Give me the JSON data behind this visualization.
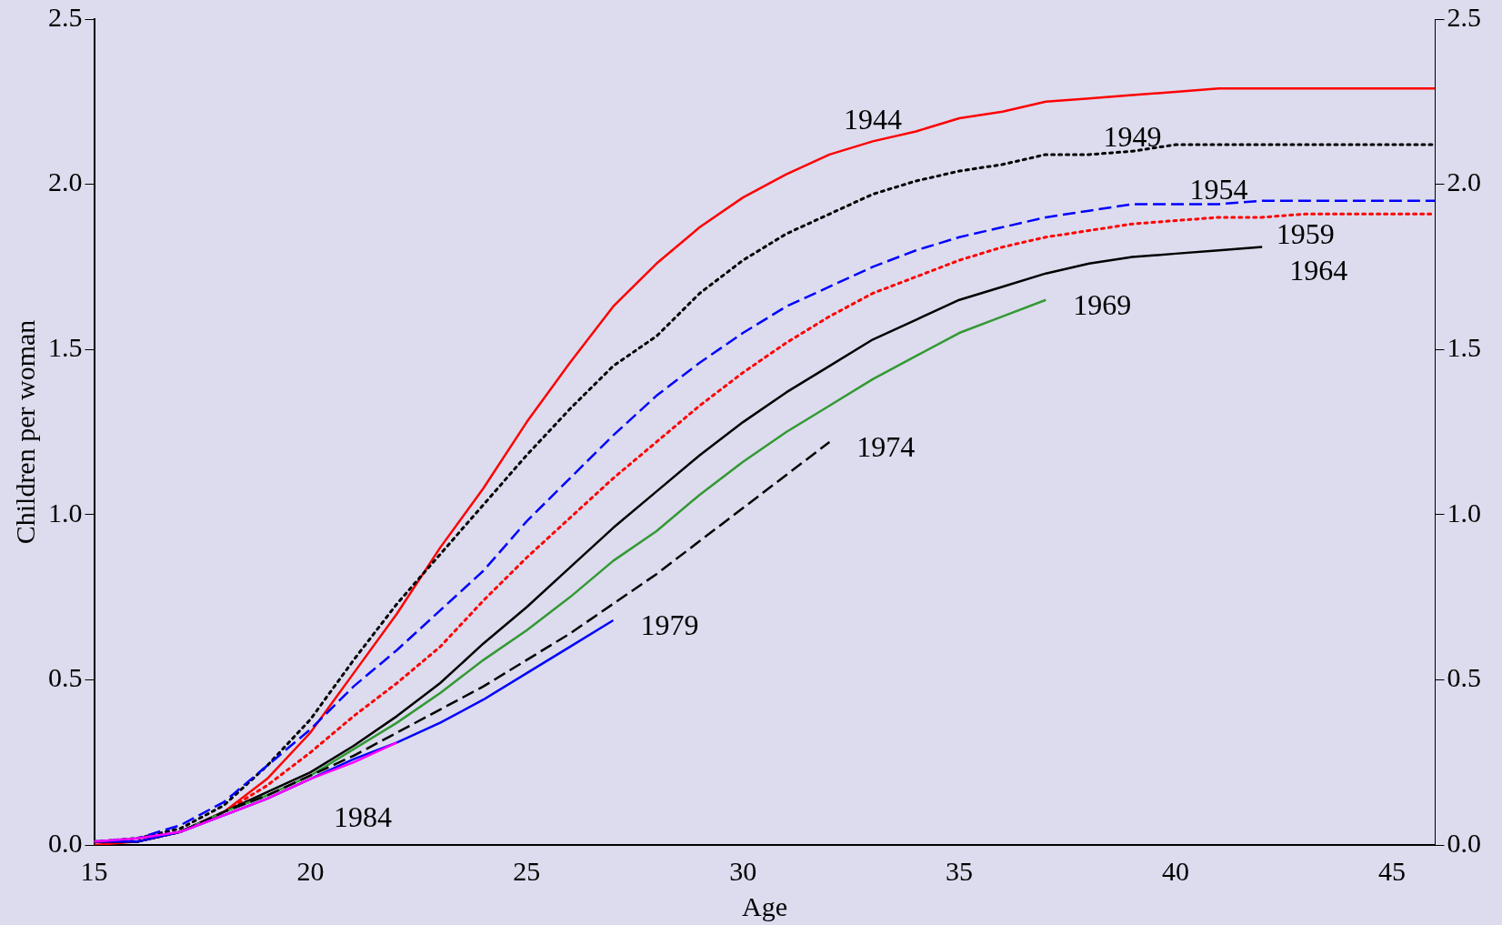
{
  "chart_data": {
    "type": "line",
    "xlabel": "Age",
    "ylabel": "Children per woman",
    "xlim": [
      15,
      46
    ],
    "xticks": [
      15,
      20,
      25,
      30,
      35,
      40,
      45
    ],
    "ylim": [
      0,
      2.5
    ],
    "yticks": [
      {
        "value": 0,
        "label": "0.0"
      },
      {
        "value": 0.5,
        "label": "0.5"
      },
      {
        "value": 1,
        "label": "1.0"
      },
      {
        "value": 1.5,
        "label": "1.5"
      },
      {
        "value": 2,
        "label": "2.0"
      },
      {
        "value": 2.5,
        "label": "2.5"
      }
    ],
    "y2lim": [
      0,
      2.5
    ],
    "y2ticks": [
      {
        "value": 0,
        "label": "0.0"
      },
      {
        "value": 0.5,
        "label": "0.5"
      },
      {
        "value": 1,
        "label": "1.0"
      },
      {
        "value": 1.5,
        "label": "1.5"
      },
      {
        "value": 2,
        "label": "2.0"
      },
      {
        "value": 2.5,
        "label": "2.5"
      }
    ],
    "grid": false,
    "legend": false,
    "marker": "none",
    "x": [
      15,
      16,
      17,
      18,
      19,
      20,
      21,
      22,
      23,
      24,
      25,
      26,
      27,
      28,
      29,
      30,
      31,
      32,
      33,
      34,
      35,
      36,
      37,
      38,
      39,
      40,
      41,
      42,
      43,
      44,
      45,
      46
    ],
    "series": [
      {
        "name": "1944",
        "color": "#ff0000",
        "line_style": "solid",
        "values": [
          0,
          0.01,
          0.04,
          0.1,
          0.2,
          0.34,
          0.52,
          0.7,
          0.9,
          1.08,
          1.28,
          1.46,
          1.63,
          1.76,
          1.87,
          1.96,
          2.03,
          2.09,
          2.13,
          2.16,
          2.2,
          2.22,
          2.25,
          2.26,
          2.27,
          2.28,
          2.29,
          2.29,
          2.29,
          2.29,
          2.29,
          2.29
        ]
      },
      {
        "name": "1949",
        "color": "#000000",
        "line_style": "dotted",
        "values": [
          0.01,
          0.02,
          0.05,
          0.12,
          0.24,
          0.38,
          0.56,
          0.73,
          0.88,
          1.03,
          1.18,
          1.32,
          1.45,
          1.54,
          1.67,
          1.77,
          1.85,
          1.91,
          1.97,
          2.01,
          2.04,
          2.06,
          2.09,
          2.09,
          2.1,
          2.12,
          2.12,
          2.12,
          2.12,
          2.12,
          2.12,
          2.12
        ]
      },
      {
        "name": "1954",
        "color": "#0000ff",
        "line_style": "dashed",
        "values": [
          0.01,
          0.02,
          0.06,
          0.13,
          0.24,
          0.35,
          0.48,
          0.59,
          0.71,
          0.83,
          0.98,
          1.11,
          1.24,
          1.36,
          1.46,
          1.55,
          1.63,
          1.69,
          1.75,
          1.8,
          1.84,
          1.87,
          1.9,
          1.92,
          1.94,
          1.94,
          1.94,
          1.95,
          1.95,
          1.95,
          1.95,
          1.95
        ]
      },
      {
        "name": "1959",
        "color": "#ff0000",
        "line_style": "dotted",
        "values": [
          0.01,
          0.01,
          0.04,
          0.1,
          0.18,
          0.28,
          0.39,
          0.49,
          0.6,
          0.74,
          0.87,
          0.99,
          1.11,
          1.22,
          1.33,
          1.43,
          1.52,
          1.6,
          1.67,
          1.72,
          1.77,
          1.81,
          1.84,
          1.86,
          1.88,
          1.89,
          1.9,
          1.9,
          1.91,
          1.91,
          1.91,
          1.91
        ]
      },
      {
        "name": "1964",
        "color": "#000000",
        "line_style": "solid",
        "values": [
          0.01,
          0.01,
          0.04,
          0.1,
          0.16,
          0.22,
          0.3,
          0.39,
          0.49,
          0.61,
          0.72,
          0.84,
          0.96,
          1.07,
          1.18,
          1.28,
          1.37,
          1.45,
          1.53,
          1.59,
          1.65,
          1.69,
          1.73,
          1.76,
          1.78,
          1.79,
          1.8,
          1.81,
          null,
          null,
          null,
          null
        ]
      },
      {
        "name": "1969",
        "color": "#339933",
        "line_style": "solid",
        "values": [
          null,
          null,
          0.04,
          0.1,
          0.15,
          0.21,
          0.29,
          0.37,
          0.46,
          0.56,
          0.65,
          0.75,
          0.86,
          0.95,
          1.06,
          1.16,
          1.25,
          1.33,
          1.41,
          1.48,
          1.55,
          1.6,
          1.65,
          null,
          null,
          null,
          null,
          null,
          null,
          null,
          null,
          null
        ]
      },
      {
        "name": "1974",
        "color": "#000000",
        "line_style": "dashed",
        "values": [
          0.01,
          0.01,
          0.04,
          0.1,
          0.15,
          0.21,
          0.27,
          0.34,
          0.41,
          0.48,
          0.56,
          0.64,
          0.73,
          0.82,
          0.92,
          1.02,
          1.12,
          1.22,
          null,
          null,
          null,
          null,
          null,
          null,
          null,
          null,
          null,
          null,
          null,
          null,
          null,
          null
        ]
      },
      {
        "name": "1979",
        "color": "#0000ff",
        "line_style": "solid",
        "values": [
          0.01,
          0.01,
          0.04,
          0.09,
          0.14,
          0.2,
          0.26,
          0.31,
          0.37,
          0.44,
          0.52,
          0.6,
          0.68,
          null,
          null,
          null,
          null,
          null,
          null,
          null,
          null,
          null,
          null,
          null,
          null,
          null,
          null,
          null,
          null,
          null,
          null,
          null
        ]
      },
      {
        "name": "1984",
        "color": "#ff00ff",
        "line_style": "solid",
        "values": [
          0.01,
          0.02,
          0.04,
          0.09,
          0.14,
          0.2,
          0.25,
          0.31,
          null,
          null,
          null,
          null,
          null,
          null,
          null,
          null,
          null,
          null,
          null,
          null,
          null,
          null,
          null,
          null,
          null,
          null,
          null,
          null,
          null,
          null,
          null,
          null
        ]
      }
    ]
  }
}
